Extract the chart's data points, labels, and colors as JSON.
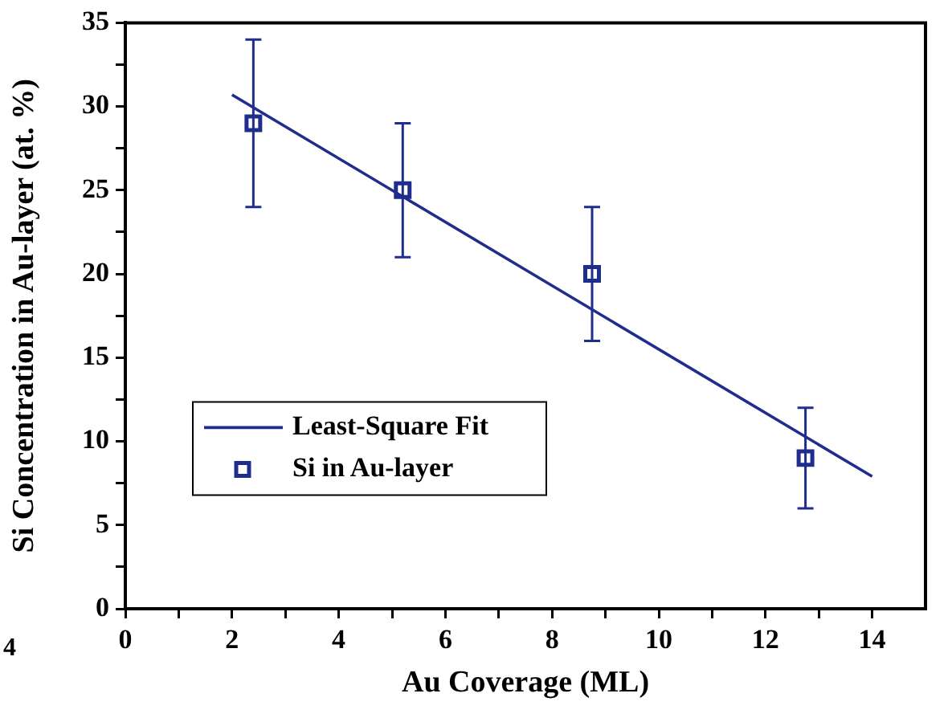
{
  "chart_data": {
    "type": "scatter",
    "xlabel": "Au Coverage (ML)",
    "ylabel": "Si Concentration in Au-layer (at. %)",
    "xlim": [
      0,
      15
    ],
    "xticks": [
      0,
      {
        "value": 1,
        "label": null
      },
      2,
      {
        "value": 3,
        "label": null
      },
      4,
      {
        "value": 5,
        "label": null
      },
      6,
      {
        "value": 7,
        "label": null
      },
      8,
      {
        "value": 9,
        "label": null
      },
      10,
      {
        "value": 11,
        "label": null
      },
      12,
      {
        "value": 13,
        "label": null
      },
      14
    ],
    "ylim": [
      0,
      35
    ],
    "yticks": [
      0,
      {
        "value": 2.5,
        "label": null
      },
      5,
      {
        "value": 7.5,
        "label": null
      },
      10,
      {
        "value": 12.5,
        "label": null
      },
      15,
      {
        "value": 17.5,
        "label": null
      },
      20,
      {
        "value": 22.5,
        "label": null
      },
      25,
      {
        "value": 27.5,
        "label": null
      },
      30,
      {
        "value": 32.5,
        "label": null
      },
      35
    ],
    "grid": false,
    "legend": "left",
    "marker": "square",
    "series": [
      {
        "name": "Least-Square Fit",
        "type": "line",
        "color": "#1f2d8c",
        "x": [
          2,
          14
        ],
        "values": [
          30.7,
          7.9
        ],
        "marker": "none",
        "line_style": "solid"
      },
      {
        "name": "Si in Au-layer",
        "color": "#1f2d8c",
        "x": [
          2.4,
          5.2,
          8.75,
          12.75
        ],
        "values": [
          29,
          25,
          20,
          9
        ],
        "errors": [
          [
            24,
            34
          ],
          [
            21,
            29
          ],
          [
            16,
            24
          ],
          [
            6,
            12
          ]
        ]
      }
    ],
    "annotations": [
      "4"
    ]
  }
}
